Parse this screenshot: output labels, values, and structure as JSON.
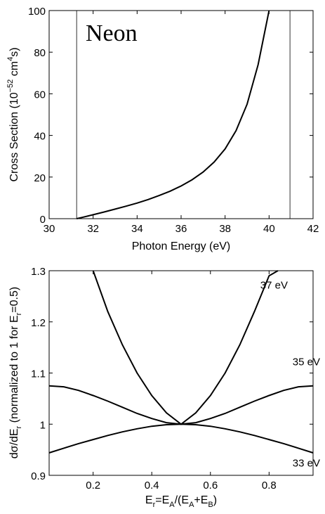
{
  "chart_data": [
    {
      "type": "line",
      "title": "Neon",
      "xlabel": "Photon Energy (eV)",
      "ylabel": {
        "text": "Cross Section (10",
        "exp1": "−52",
        "mid": " cm",
        "exp2": "4",
        "end": "s)"
      },
      "xlim": [
        30,
        42
      ],
      "ylim": [
        0,
        100
      ],
      "xticks": [
        "30",
        "32",
        "34",
        "36",
        "38",
        "40",
        "42"
      ],
      "yticks": [
        "0",
        "20",
        "40",
        "60",
        "80",
        "100"
      ],
      "vertical_lines_x": [
        31.25,
        40.95
      ],
      "grid": false,
      "series": [
        {
          "x": [
            31.25,
            31.5,
            32,
            32.5,
            33,
            33.5,
            34,
            34.5,
            35,
            35.5,
            36,
            36.5,
            37,
            37.5,
            38,
            38.5,
            39,
            39.5,
            39.75,
            40.0
          ],
          "y": [
            0,
            0.6,
            1.9,
            3.2,
            4.6,
            6.0,
            7.5,
            9.2,
            11.1,
            13.2,
            15.7,
            18.7,
            22.4,
            27.2,
            33.5,
            42.3,
            55.0,
            74.0,
            87.0,
            100
          ]
        }
      ]
    },
    {
      "type": "line",
      "title": "",
      "xlabel": {
        "pre": "E",
        "s1": "r",
        "mid": "=E",
        "s2": "A",
        "mid2": "/(E",
        "s3": "A",
        "mid3": "+E",
        "s4": "B",
        "end": ")"
      },
      "ylabel": {
        "pre": "dσ/dE",
        "s1": "r",
        "mid": " (normalized to 1 for E",
        "s2": "r",
        "end": "=0.5)"
      },
      "xlim": [
        0.05,
        0.95
      ],
      "ylim": [
        0.9,
        1.3
      ],
      "xticks": [
        "0.2",
        "0.4",
        "0.6",
        "0.8"
      ],
      "yticks": [
        "0.9",
        "1",
        "1.1",
        "1.2",
        "1.3"
      ],
      "grid": false,
      "series": [
        {
          "name": "37 eV",
          "x": [
            0.2,
            0.25,
            0.3,
            0.35,
            0.4,
            0.45,
            0.5,
            0.55,
            0.6,
            0.65,
            0.7,
            0.75,
            0.8,
            0.83
          ],
          "y": [
            1.3,
            1.22,
            1.155,
            1.1,
            1.056,
            1.022,
            1.0,
            1.022,
            1.056,
            1.1,
            1.155,
            1.22,
            1.29,
            1.3
          ]
        },
        {
          "name": "35 eV",
          "x": [
            0.05,
            0.1,
            0.15,
            0.2,
            0.25,
            0.3,
            0.35,
            0.4,
            0.45,
            0.5,
            0.55,
            0.6,
            0.65,
            0.7,
            0.75,
            0.8,
            0.85,
            0.9,
            0.95
          ],
          "y": [
            1.075,
            1.073,
            1.066,
            1.056,
            1.045,
            1.033,
            1.021,
            1.011,
            1.003,
            1.0,
            1.003,
            1.011,
            1.021,
            1.033,
            1.045,
            1.056,
            1.066,
            1.073,
            1.075
          ]
        },
        {
          "name": "33 eV",
          "x": [
            0.05,
            0.1,
            0.15,
            0.2,
            0.25,
            0.3,
            0.35,
            0.4,
            0.45,
            0.5,
            0.55,
            0.6,
            0.65,
            0.7,
            0.75,
            0.8,
            0.85,
            0.9,
            0.95
          ],
          "y": [
            0.944,
            0.953,
            0.962,
            0.97,
            0.978,
            0.985,
            0.991,
            0.996,
            0.999,
            1.0,
            0.999,
            0.996,
            0.991,
            0.985,
            0.978,
            0.97,
            0.962,
            0.953,
            0.944
          ]
        }
      ],
      "series_label_anchor_x": [
        0.77,
        0.88,
        0.88
      ],
      "series_label_anchor_y": [
        1.265,
        1.115,
        0.917
      ]
    }
  ]
}
